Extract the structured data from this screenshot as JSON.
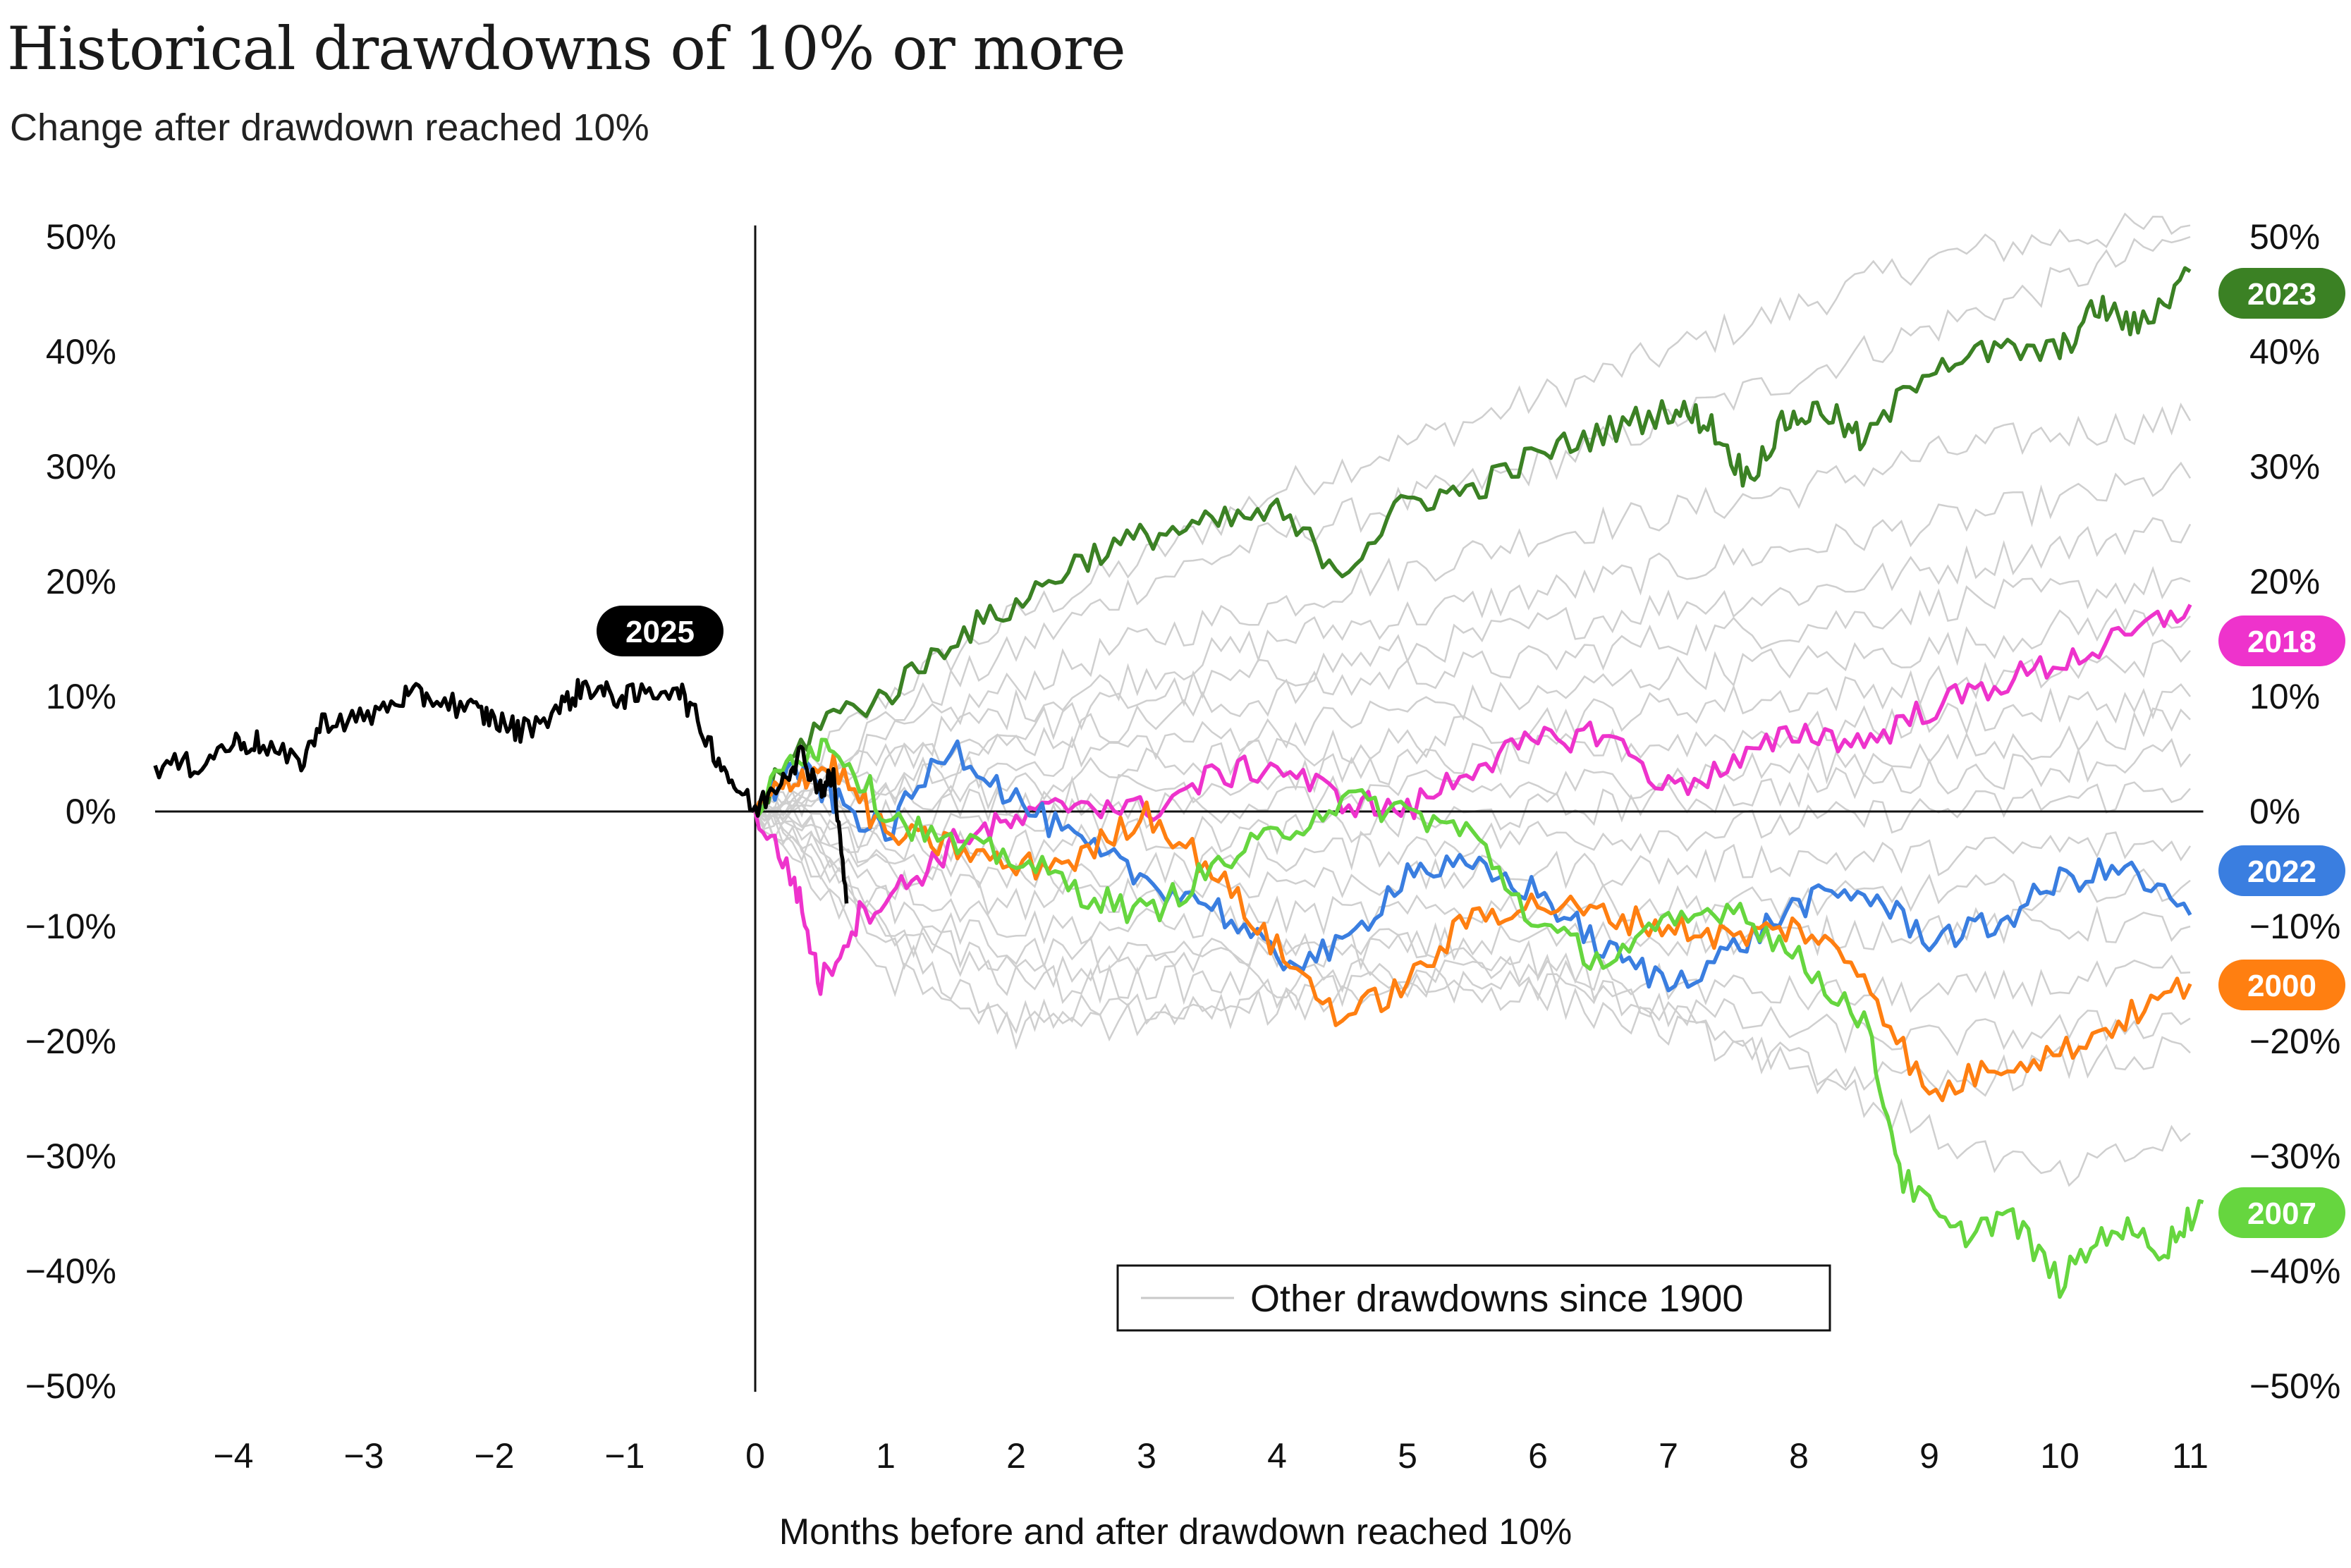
{
  "title": "Historical drawdowns of 10% or more",
  "subtitle": "Change after drawdown reached 10%",
  "chart_data": {
    "type": "line",
    "title": "Historical drawdowns of 10% or more",
    "subtitle": "Change after drawdown reached 10%",
    "xlabel": "Months before and after drawdown reached 10%",
    "ylabel": "",
    "xlim": [
      -4.6,
      11.1
    ],
    "ylim": [
      -50,
      50
    ],
    "x_ticks": [
      -4,
      -3,
      -2,
      -1,
      0,
      1,
      2,
      3,
      4,
      5,
      6,
      7,
      8,
      9,
      10,
      11
    ],
    "x_tick_labels": [
      "−4",
      "−3",
      "−2",
      "−1",
      "0",
      "1",
      "2",
      "3",
      "4",
      "5",
      "6",
      "7",
      "8",
      "9",
      "10",
      "11"
    ],
    "y_ticks": [
      50,
      40,
      30,
      20,
      10,
      0,
      -10,
      -20,
      -30,
      -40,
      -50
    ],
    "y_tick_labels": [
      "50%",
      "40%",
      "30%",
      "20%",
      "10%",
      "0%",
      "−10%",
      "−20%",
      "−30%",
      "−40%",
      "−50%"
    ],
    "legend": {
      "label": "Other drawdowns since 1900",
      "position": "bottom-center"
    },
    "series": [
      {
        "name": "2025",
        "color": "#000000",
        "label_position": "above",
        "x": [
          -4.6,
          -4.3,
          -4.0,
          -3.8,
          -3.5,
          -3.3,
          -3.0,
          -2.7,
          -2.5,
          -2.2,
          -2.0,
          -1.8,
          -1.5,
          -1.3,
          -1.1,
          -0.9,
          -0.6,
          -0.4,
          -0.2,
          0.0,
          0.2,
          0.35,
          0.5,
          0.6,
          0.7
        ],
        "values": [
          4,
          4,
          6,
          6,
          4,
          8,
          8,
          10,
          10,
          9,
          8,
          7,
          9,
          11,
          10,
          10,
          11,
          7,
          3,
          0,
          3,
          5,
          2,
          3,
          -8
        ]
      },
      {
        "name": "2023",
        "color": "#3b8124",
        "label_position": "right",
        "x": [
          0,
          0.5,
          1,
          1.5,
          2,
          2.5,
          3,
          3.5,
          4,
          4.5,
          5,
          5.5,
          6,
          6.5,
          7,
          7.3,
          7.6,
          7.9,
          8.2,
          8.5,
          9,
          9.5,
          10,
          10.3,
          10.6,
          11
        ],
        "values": [
          0,
          8,
          10,
          15,
          18,
          22,
          24,
          25,
          26,
          21,
          27,
          28,
          31,
          33,
          35,
          34,
          29,
          34,
          35,
          32,
          39,
          40,
          40,
          44,
          42,
          47
        ]
      },
      {
        "name": "2018",
        "color": "#ee33cc",
        "label_position": "right",
        "x": [
          0,
          0.3,
          0.5,
          0.8,
          1.2,
          1.6,
          2,
          2.5,
          3,
          3.5,
          4,
          4.5,
          5,
          5.5,
          6,
          6.5,
          7,
          7.5,
          8,
          8.5,
          9,
          9.5,
          10,
          10.5,
          11
        ],
        "values": [
          0,
          -6,
          -15,
          -9,
          -6,
          -2,
          -1,
          1,
          0,
          3,
          4,
          1,
          0,
          4,
          6,
          7,
          2,
          4,
          7,
          6,
          9,
          11,
          13,
          15,
          18
        ]
      },
      {
        "name": "2022",
        "color": "#3a7ee0",
        "label_position": "right",
        "x": [
          0,
          0.3,
          0.6,
          1,
          1.5,
          2,
          2.5,
          3,
          3.5,
          4,
          4.5,
          5,
          5.5,
          6,
          6.5,
          7,
          7.5,
          8,
          8.5,
          9,
          9.5,
          10,
          10.5,
          11
        ],
        "values": [
          0,
          4,
          1,
          -2,
          6,
          1,
          -3,
          -6,
          -8,
          -13,
          -12,
          -5,
          -5,
          -7,
          -12,
          -15,
          -12,
          -8,
          -7,
          -11,
          -10,
          -6,
          -5,
          -9
        ]
      },
      {
        "name": "2000",
        "color": "#ff7f11",
        "label_position": "right",
        "x": [
          0,
          0.3,
          0.6,
          1,
          1.5,
          2,
          2.5,
          3,
          3.5,
          4,
          4.5,
          5,
          5.5,
          6,
          6.5,
          7,
          7.5,
          8,
          8.5,
          9,
          9.5,
          10,
          10.5,
          11
        ],
        "values": [
          0,
          3,
          4,
          -2,
          -3,
          -5,
          -4,
          0,
          -5,
          -12,
          -18,
          -15,
          -9,
          -8,
          -9,
          -10,
          -11,
          -10,
          -14,
          -25,
          -22,
          -21,
          -18,
          -15
        ]
      },
      {
        "name": "2007",
        "color": "#66d63f",
        "label_position": "right",
        "x": [
          0,
          0.3,
          0.6,
          1,
          1.5,
          2,
          2.5,
          3,
          3.5,
          4,
          4.5,
          5,
          5.5,
          6,
          6.5,
          7,
          7.5,
          8,
          8.5,
          8.8,
          9.2,
          9.6,
          10,
          10.4,
          10.8,
          11.1
        ],
        "values": [
          0,
          5,
          6,
          0,
          -3,
          -4,
          -7,
          -9,
          -5,
          -2,
          1,
          0,
          -2,
          -10,
          -13,
          -10,
          -8,
          -13,
          -18,
          -32,
          -37,
          -35,
          -41,
          -36,
          -38,
          -34
        ]
      }
    ],
    "other_drawdowns": [
      {
        "x": [
          0,
          1,
          2,
          3,
          4,
          5,
          6,
          7,
          8,
          9,
          10,
          11
        ],
        "values": [
          0,
          10,
          17,
          22,
          28,
          32,
          36,
          40,
          44,
          48,
          50,
          51
        ]
      },
      {
        "x": [
          0,
          1,
          2,
          3,
          4,
          5,
          6,
          7,
          8,
          9,
          10,
          11
        ],
        "values": [
          0,
          8,
          14,
          20,
          24,
          27,
          30,
          34,
          38,
          42,
          46,
          50
        ]
      },
      {
        "x": [
          0,
          1,
          2,
          3,
          4,
          5,
          6,
          7,
          8,
          9,
          10,
          11
        ],
        "values": [
          0,
          6,
          11,
          15,
          18,
          21,
          24,
          26,
          28,
          31,
          33,
          34
        ]
      },
      {
        "x": [
          0,
          1,
          2,
          3,
          4,
          5,
          6,
          7,
          8,
          9,
          10,
          11
        ],
        "values": [
          0,
          5,
          9,
          12,
          15,
          17,
          19,
          21,
          23,
          25,
          27,
          29
        ]
      },
      {
        "x": [
          0,
          1,
          2,
          3,
          4,
          5,
          6,
          7,
          8,
          9,
          10,
          11
        ],
        "values": [
          0,
          4,
          7,
          10,
          12,
          14,
          16,
          18,
          19,
          21,
          23,
          25
        ]
      },
      {
        "x": [
          0,
          1,
          2,
          3,
          4,
          5,
          6,
          7,
          8,
          9,
          10,
          11
        ],
        "values": [
          0,
          3,
          6,
          8,
          10,
          12,
          13,
          15,
          16,
          18,
          19,
          20
        ]
      },
      {
        "x": [
          0,
          1,
          2,
          3,
          4,
          5,
          6,
          7,
          8,
          9,
          10,
          11
        ],
        "values": [
          0,
          2,
          4,
          6,
          7,
          9,
          10,
          12,
          13,
          14,
          16,
          17
        ]
      },
      {
        "x": [
          0,
          1,
          2,
          3,
          4,
          5,
          6,
          7,
          8,
          9,
          10,
          11
        ],
        "values": [
          0,
          1,
          2,
          4,
          5,
          6,
          8,
          9,
          10,
          11,
          12,
          14
        ]
      },
      {
        "x": [
          0,
          1,
          2,
          3,
          4,
          5,
          6,
          7,
          8,
          9,
          10,
          11
        ],
        "values": [
          0,
          0,
          1,
          2,
          3,
          4,
          5,
          6,
          7,
          8,
          9,
          10
        ]
      },
      {
        "x": [
          0,
          1,
          2,
          3,
          4,
          5,
          6,
          7,
          8,
          9,
          10,
          11
        ],
        "values": [
          0,
          -2,
          -1,
          0,
          1,
          2,
          2,
          3,
          4,
          5,
          6,
          8
        ]
      },
      {
        "x": [
          0,
          1,
          2,
          3,
          4,
          5,
          6,
          7,
          8,
          9,
          10,
          11
        ],
        "values": [
          0,
          -3,
          -3,
          -2,
          -2,
          -1,
          0,
          1,
          2,
          3,
          4,
          5
        ]
      },
      {
        "x": [
          0,
          1,
          2,
          3,
          4,
          5,
          6,
          7,
          8,
          9,
          10,
          11
        ],
        "values": [
          0,
          -4,
          -6,
          -5,
          -4,
          -3,
          -2,
          -2,
          -1,
          0,
          1,
          2
        ]
      },
      {
        "x": [
          0,
          1,
          2,
          3,
          4,
          5,
          6,
          7,
          8,
          9,
          10,
          11
        ],
        "values": [
          0,
          -5,
          -8,
          -7,
          -6,
          -6,
          -5,
          -5,
          -4,
          -4,
          -3,
          -3
        ]
      },
      {
        "x": [
          0,
          1,
          2,
          3,
          4,
          5,
          6,
          7,
          8,
          9,
          10,
          11
        ],
        "values": [
          0,
          -6,
          -10,
          -10,
          -9,
          -9,
          -8,
          -8,
          -8,
          -7,
          -7,
          -6
        ]
      },
      {
        "x": [
          0,
          1,
          2,
          3,
          4,
          5,
          6,
          7,
          8,
          9,
          10,
          11
        ],
        "values": [
          0,
          -8,
          -12,
          -13,
          -12,
          -12,
          -11,
          -11,
          -11,
          -10,
          -10,
          -10
        ]
      },
      {
        "x": [
          0,
          1,
          2,
          3,
          4,
          5,
          6,
          7,
          8,
          9,
          10,
          11
        ],
        "values": [
          0,
          -10,
          -15,
          -15,
          -15,
          -14,
          -14,
          -15,
          -16,
          -16,
          -15,
          -14
        ]
      },
      {
        "x": [
          0,
          1,
          2,
          3,
          4,
          5,
          6,
          7,
          8,
          9,
          10,
          11
        ],
        "values": [
          0,
          -12,
          -18,
          -17,
          -16,
          -15,
          -15,
          -17,
          -19,
          -20,
          -19,
          -18
        ]
      },
      {
        "x": [
          0,
          1,
          2,
          3,
          4,
          5,
          6,
          7,
          8,
          9,
          10,
          11
        ],
        "values": [
          0,
          -14,
          -19,
          -18,
          -17,
          -15,
          -16,
          -19,
          -22,
          -24,
          -22,
          -21
        ]
      },
      {
        "x": [
          0,
          1,
          2,
          3,
          4,
          5,
          6,
          7,
          8,
          9,
          10,
          11
        ],
        "values": [
          0,
          -10,
          -14,
          -13,
          -12,
          -11,
          -13,
          -17,
          -22,
          -28,
          -32,
          -28
        ]
      }
    ]
  }
}
